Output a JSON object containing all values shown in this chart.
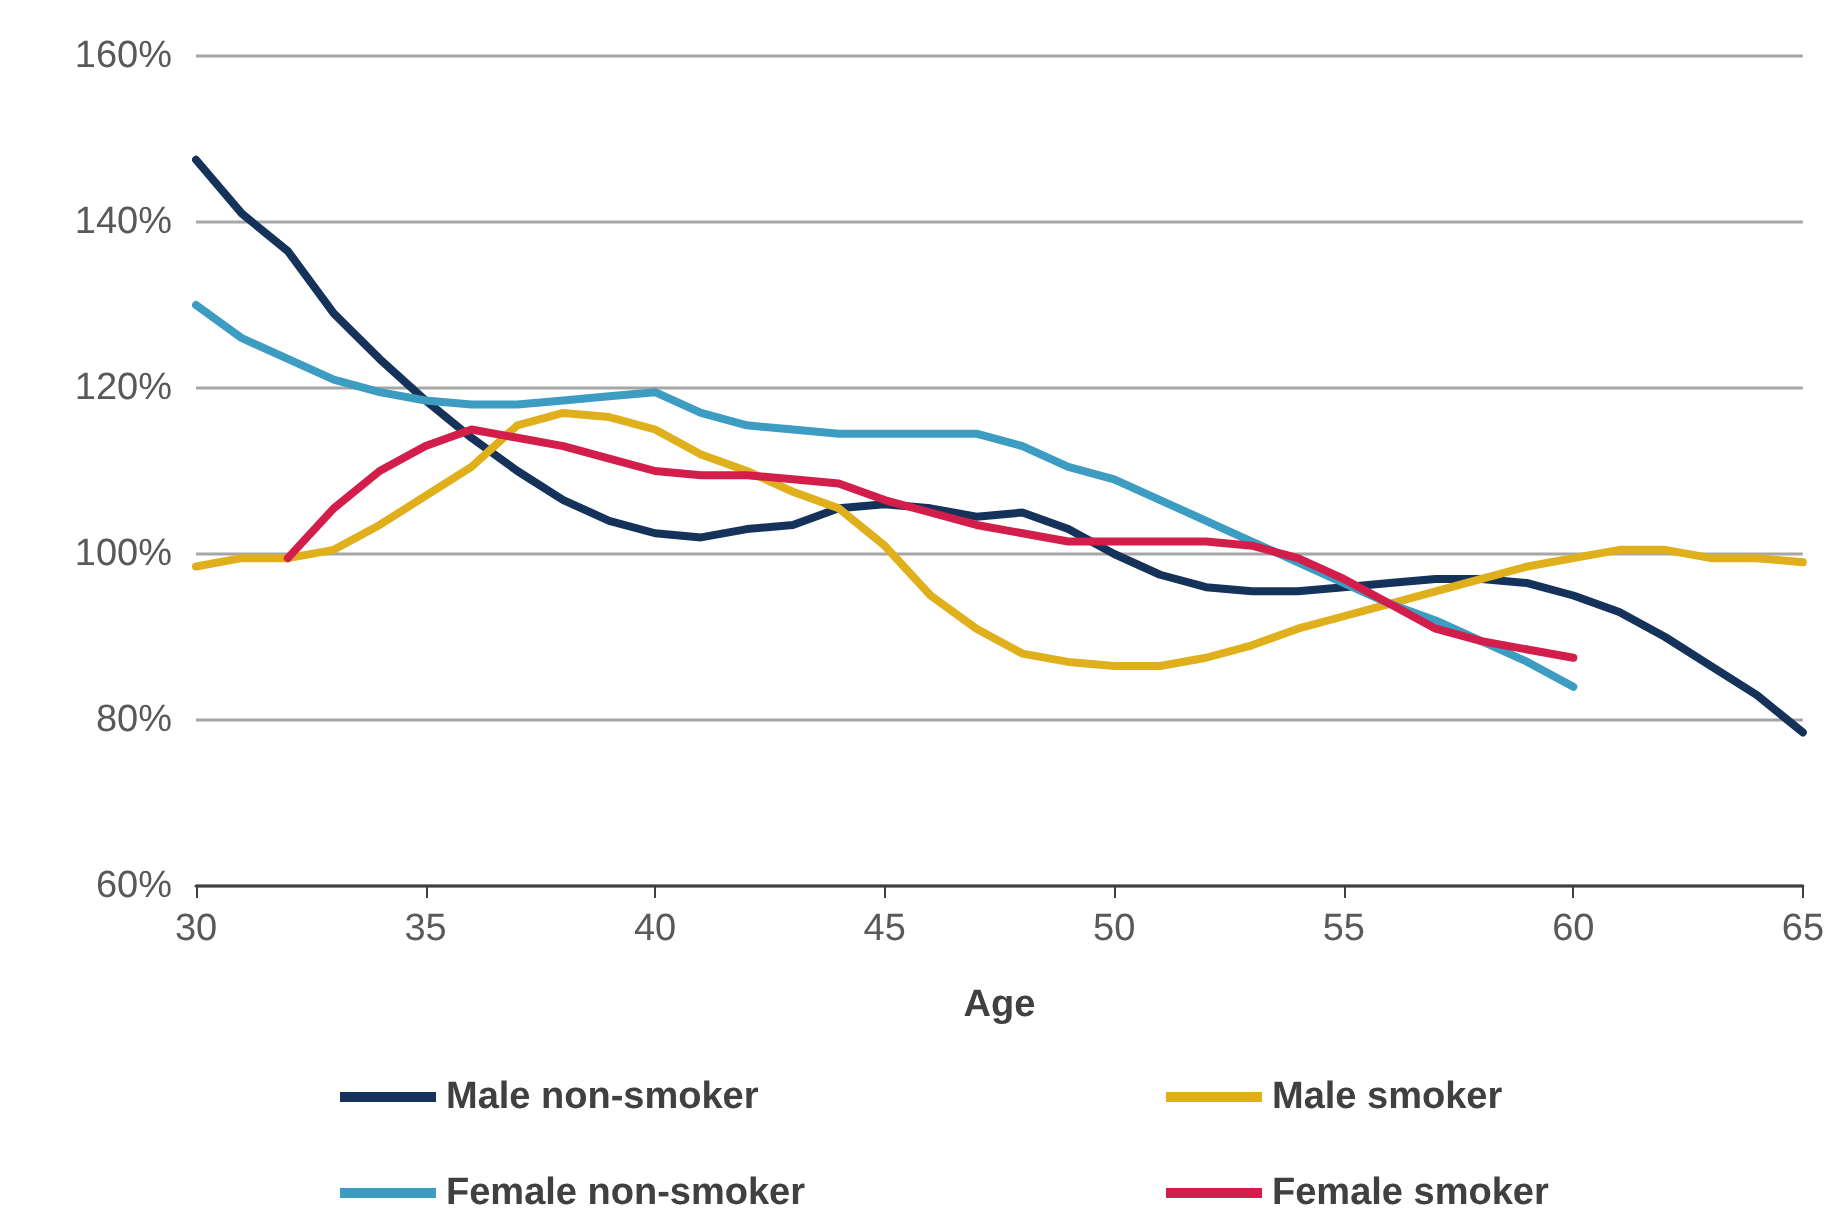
{
  "chart_data": {
    "type": "line",
    "xlabel": "Age",
    "x": [
      30,
      31,
      32,
      33,
      34,
      35,
      36,
      37,
      38,
      39,
      40,
      41,
      42,
      43,
      44,
      45,
      46,
      47,
      48,
      49,
      50,
      51,
      52,
      53,
      54,
      55,
      56,
      57,
      58,
      59,
      60,
      61,
      62,
      63,
      64,
      65
    ],
    "series": [
      {
        "name": "Male non-smoker",
        "color": "#14325a",
        "values": [
          147.5,
          141,
          136.5,
          129,
          123.5,
          118.5,
          114,
          110,
          106.5,
          104,
          102.5,
          102,
          103,
          103.5,
          105.5,
          106,
          105.5,
          104.5,
          105,
          103,
          100,
          97.5,
          96,
          95.5,
          95.5,
          96,
          96.5,
          97,
          97,
          96.5,
          95,
          93,
          90,
          86.5,
          83,
          78.5
        ]
      },
      {
        "name": "Male smoker",
        "color": "#e0b01c",
        "values": [
          98.5,
          99.5,
          99.5,
          100.5,
          103.5,
          107,
          110.5,
          115.5,
          117,
          116.5,
          115,
          112,
          110,
          107.5,
          105.5,
          101,
          95,
          91,
          88,
          87,
          86.5,
          86.5,
          87.5,
          89,
          91,
          92.5,
          94,
          95.5,
          97,
          98.5,
          99.5,
          100.5,
          100.5,
          99.5,
          99.5,
          99
        ]
      },
      {
        "name": "Female non-smoker",
        "color": "#3d9cc2",
        "values": [
          130,
          126,
          123.5,
          121,
          119.5,
          118.5,
          118,
          118,
          118.5,
          119,
          119.5,
          117,
          115.5,
          115,
          114.5,
          114.5,
          114.5,
          114.5,
          113,
          110.5,
          109,
          106.5,
          104,
          101.5,
          99,
          96.5,
          94,
          92,
          89.5,
          87,
          84,
          null,
          null,
          null,
          null,
          null
        ]
      },
      {
        "name": "Female smoker",
        "color": "#d31d4a",
        "values": [
          null,
          null,
          99.5,
          105.5,
          110,
          113,
          115,
          114,
          113,
          111.5,
          110,
          109.5,
          109.5,
          109,
          108.5,
          106.5,
          105,
          103.5,
          102.5,
          101.5,
          101.5,
          101.5,
          101.5,
          101,
          99.5,
          97,
          94,
          91,
          89.5,
          88.5,
          87.5,
          null,
          null,
          null,
          null,
          null
        ]
      }
    ],
    "xlim": [
      30,
      65
    ],
    "xticks": [
      30,
      35,
      40,
      45,
      50,
      55,
      60,
      65
    ],
    "ylim": [
      60,
      160
    ],
    "yticks": [
      {
        "value": 60,
        "label": "60%"
      },
      {
        "value": 80,
        "label": "80%"
      },
      {
        "value": 100,
        "label": "100%"
      },
      {
        "value": 120,
        "label": "120%"
      },
      {
        "value": 140,
        "label": "140%"
      },
      {
        "value": 160,
        "label": "160%"
      }
    ],
    "grid": "y",
    "legend": "bottom",
    "marker": "none",
    "line_style": "solid"
  }
}
